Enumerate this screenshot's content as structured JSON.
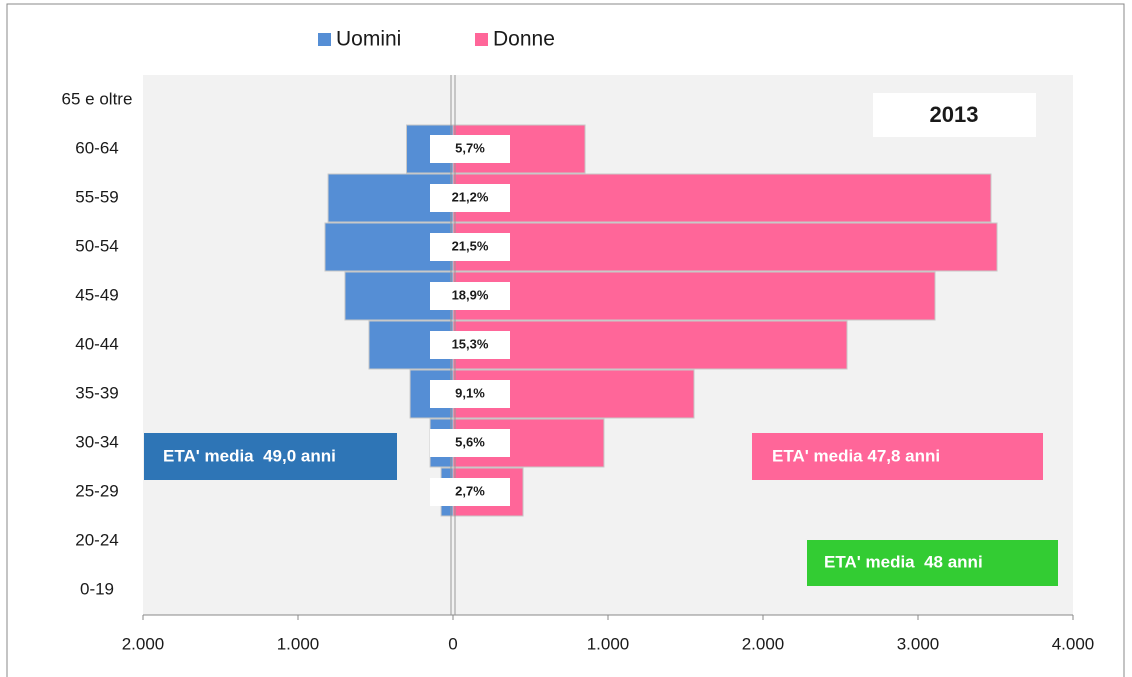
{
  "chart_data": {
    "type": "pyramid",
    "categories": [
      "65 e oltre",
      "60-64",
      "55-59",
      "50-54",
      "45-49",
      "40-44",
      "35-39",
      "30-34",
      "25-29",
      "20-24",
      "0-19"
    ],
    "series": [
      {
        "name": "Uomini",
        "color": "#558ed5",
        "values": [
          0,
          -300,
          -806,
          -826,
          -697,
          -542,
          -277,
          -148,
          -77,
          0,
          0
        ]
      },
      {
        "name": "Donne",
        "color": "#ff6699",
        "values": [
          0,
          852,
          3471,
          3510,
          3110,
          2542,
          1555,
          974,
          452,
          0,
          0
        ]
      }
    ],
    "percent_labels": [
      null,
      "5,7%",
      "21,2%",
      "21,5%",
      "18,9%",
      "15,3%",
      "9,1%",
      "5,6%",
      "2,7%",
      null,
      null
    ],
    "xlim": [
      -2000,
      4000
    ],
    "xticks": [
      {
        "value": -2000,
        "label": "2.000"
      },
      {
        "value": -1000,
        "label": "1.000"
      },
      0,
      {
        "value": 1000,
        "label": "1.000"
      },
      {
        "value": 2000,
        "label": "2.000"
      },
      {
        "value": 3000,
        "label": "3.000"
      },
      {
        "value": 4000,
        "label": "4.000"
      }
    ],
    "annotations": [
      "2013",
      "ETA' media  49,0 anni",
      "ETA' media 47,8 anni",
      "ETA' media  48 anni"
    ],
    "legend": "top"
  }
}
